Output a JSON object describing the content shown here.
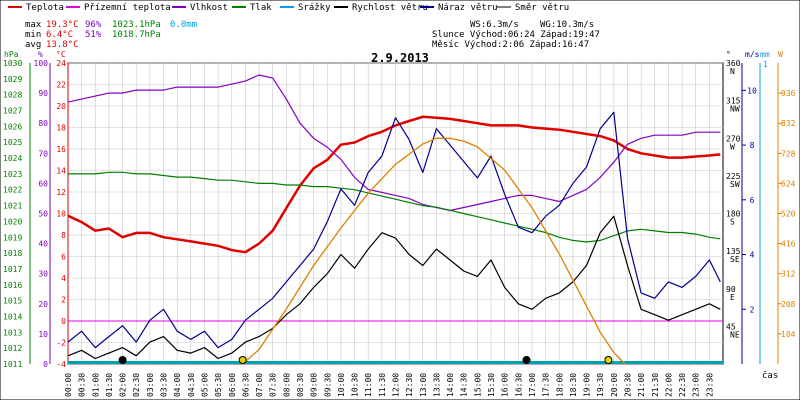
{
  "legend": [
    {
      "label": "Teplota",
      "color": "#e00000"
    },
    {
      "label": "Přízemní teplota",
      "color": "#e000e0"
    },
    {
      "label": "Vlhkost",
      "color": "#8000c0"
    },
    {
      "label": "Tlak",
      "color": "#008000"
    },
    {
      "label": "Srážky",
      "color": "#00a0e0"
    },
    {
      "label": "Rychlost větru",
      "color": "#000000"
    },
    {
      "label": "Náraz větru",
      "color": "#000090"
    },
    {
      "label": "Směr větru",
      "color": "#808080"
    }
  ],
  "stats": {
    "max_label": "max",
    "min_label": "min",
    "avg_label": "avg",
    "max_temp": "19.3°C",
    "max_hum": "96%",
    "max_press": "1023.1hPa",
    "max_rain": "0.0mm",
    "min_temp": "6.4°C",
    "min_hum": "51%",
    "min_press": "1018.7hPa",
    "avg_temp": "13.8°C"
  },
  "wind_info": {
    "ws": "WS:6.3m/s",
    "wg": "WG:10.3m/s",
    "sun_row": "Slunce Východ:06:24  Západ:19:47",
    "moon_row": "Měsíc  Východ:2:06   Západ:16:47"
  },
  "colors": {
    "temp": "#e00000",
    "ground": "#e000e0",
    "hum": "#8000c0",
    "press": "#008000",
    "rain": "#00a0e0",
    "wind": "#000000",
    "gust": "#000090",
    "dir": "#808080",
    "solar": "#e08000",
    "grid": "#c8c8c8"
  },
  "chart_data": {
    "type": "line",
    "title": "2.9.2013",
    "xlabel": "čas",
    "x_ticks": [
      "00:00",
      "00:30",
      "01:00",
      "01:30",
      "02:00",
      "02:30",
      "03:00",
      "03:30",
      "04:00",
      "04:30",
      "05:00",
      "05:30",
      "06:00",
      "06:30",
      "07:00",
      "07:30",
      "08:00",
      "08:30",
      "09:00",
      "09:30",
      "10:00",
      "10:30",
      "11:00",
      "11:30",
      "12:00",
      "12:30",
      "13:00",
      "13:30",
      "14:00",
      "14:30",
      "15:00",
      "15:30",
      "16:00",
      "16:30",
      "17:00",
      "17:30",
      "18:00",
      "18:30",
      "19:00",
      "19:30",
      "20:00",
      "20:30",
      "21:00",
      "21:30",
      "22:00",
      "22:30",
      "23:00",
      "23:30"
    ],
    "xlim": [
      0,
      24
    ],
    "axes": {
      "pressure": {
        "unit": "hPa",
        "range": [
          1011,
          1030
        ],
        "ticks": [
          "1030",
          "1029",
          "1028",
          "1027",
          "1026",
          "1025",
          "1024",
          "1023",
          "1022",
          "1021",
          "1020",
          "1019",
          "1018",
          "1017",
          "1016",
          "1015",
          "1014",
          "1013",
          "1012",
          "1011"
        ]
      },
      "humidity": {
        "unit": "%",
        "range": [
          0,
          100
        ],
        "ticks": [
          "100",
          "90",
          "80",
          "70",
          "60",
          "50",
          "40",
          "30",
          "20",
          "10",
          "0"
        ]
      },
      "temperature": {
        "unit": "°C",
        "range": [
          -4,
          24
        ],
        "ticks": [
          "24",
          "22",
          "20",
          "18",
          "16",
          "14",
          "12",
          "10",
          "8",
          "6",
          "4",
          "2",
          "0",
          "-2",
          "-4"
        ]
      },
      "wind_direction": {
        "unit": "°",
        "range": [
          0,
          360
        ],
        "ticks": [
          "360",
          "315",
          "270",
          "225",
          "180",
          "135",
          "90",
          "45"
        ],
        "compass": [
          "N",
          "NW",
          "W",
          "SW",
          "S",
          "SE",
          "E",
          "NE"
        ]
      },
      "wind_speed": {
        "unit": "m/s",
        "range": [
          0,
          11
        ],
        "ticks": [
          "10",
          "8",
          "6",
          "4",
          "2"
        ]
      },
      "rain": {
        "unit": "mm",
        "ticks": [
          "1"
        ]
      },
      "solar": {
        "unit": "W",
        "range": [
          0,
          1040
        ],
        "ticks": [
          "936",
          "832",
          "728",
          "624",
          "520",
          "416",
          "312",
          "208",
          "104"
        ]
      }
    },
    "series": [
      {
        "key": "temp",
        "name": "Teplota",
        "axis": "temperature",
        "x": [
          0,
          0.5,
          1,
          1.5,
          2,
          2.5,
          3,
          3.5,
          4,
          4.5,
          5,
          5.5,
          6,
          6.5,
          7,
          7.5,
          8,
          8.5,
          9,
          9.5,
          10,
          10.5,
          11,
          11.5,
          12,
          12.5,
          13,
          13.5,
          14,
          14.5,
          15,
          15.5,
          16,
          16.5,
          17,
          17.5,
          18,
          18.5,
          19,
          19.5,
          20,
          20.5,
          21,
          21.5,
          22,
          22.5,
          23,
          23.5,
          23.9
        ],
        "y": [
          9.8,
          9.2,
          8.4,
          8.6,
          7.8,
          8.2,
          8.2,
          7.8,
          7.6,
          7.4,
          7.2,
          7.0,
          6.6,
          6.4,
          7.2,
          8.4,
          10.5,
          12.6,
          14.2,
          15.0,
          16.4,
          16.6,
          17.2,
          17.6,
          18.2,
          18.6,
          19.0,
          18.9,
          18.8,
          18.6,
          18.4,
          18.2,
          18.2,
          18.2,
          18.0,
          17.9,
          17.8,
          17.6,
          17.4,
          17.2,
          16.8,
          16.0,
          15.6,
          15.4,
          15.2,
          15.2,
          15.3,
          15.4,
          15.5
        ]
      },
      {
        "key": "hum",
        "name": "Vlhkost",
        "axis": "humidity",
        "x": [
          0,
          0.5,
          1,
          1.5,
          2,
          2.5,
          3,
          3.5,
          4,
          4.5,
          5,
          5.5,
          6,
          6.5,
          7,
          7.5,
          8,
          8.5,
          9,
          9.5,
          10,
          10.5,
          11,
          11.5,
          12,
          12.5,
          13,
          13.5,
          14,
          14.5,
          15,
          15.5,
          16,
          16.5,
          17,
          17.5,
          18,
          18.5,
          19,
          19.5,
          20,
          20.5,
          21,
          21.5,
          22,
          22.5,
          23,
          23.5,
          23.9
        ],
        "y": [
          87,
          88,
          89,
          90,
          90,
          91,
          91,
          91,
          92,
          92,
          92,
          92,
          93,
          94,
          96,
          95,
          88,
          80,
          75,
          72,
          68,
          62,
          58,
          57,
          56,
          55,
          53,
          52,
          51,
          52,
          53,
          54,
          55,
          56,
          56,
          55,
          54,
          56,
          58,
          62,
          67,
          73,
          75,
          76,
          76,
          76,
          77,
          77,
          77
        ]
      },
      {
        "key": "press",
        "name": "Tlak",
        "axis": "pressure",
        "x": [
          0,
          0.5,
          1,
          1.5,
          2,
          2.5,
          3,
          3.5,
          4,
          4.5,
          5,
          5.5,
          6,
          6.5,
          7,
          7.5,
          8,
          8.5,
          9,
          9.5,
          10,
          10.5,
          11,
          11.5,
          12,
          12.5,
          13,
          13.5,
          14,
          14.5,
          15,
          15.5,
          16,
          16.5,
          17,
          17.5,
          18,
          18.5,
          19,
          19.5,
          20,
          20.5,
          21,
          21.5,
          22,
          22.5,
          23,
          23.5,
          23.9
        ],
        "y": [
          1023.0,
          1023.0,
          1023.0,
          1023.1,
          1023.1,
          1023.0,
          1023.0,
          1022.9,
          1022.8,
          1022.8,
          1022.7,
          1022.6,
          1022.6,
          1022.5,
          1022.4,
          1022.4,
          1022.3,
          1022.3,
          1022.2,
          1022.2,
          1022.1,
          1022.0,
          1021.8,
          1021.6,
          1021.4,
          1021.2,
          1021.0,
          1020.9,
          1020.7,
          1020.5,
          1020.3,
          1020.1,
          1019.9,
          1019.7,
          1019.5,
          1019.3,
          1019.0,
          1018.8,
          1018.7,
          1018.8,
          1019.1,
          1019.4,
          1019.5,
          1019.4,
          1019.3,
          1019.3,
          1019.2,
          1019.0,
          1018.9
        ]
      },
      {
        "key": "ground",
        "name": "Přízemní teplota",
        "axis": "temperature",
        "x": [
          0,
          24
        ],
        "y": [
          0,
          0
        ]
      },
      {
        "key": "wind",
        "name": "Rychlost větru",
        "axis": "wind_speed",
        "x": [
          0,
          0.5,
          1,
          1.5,
          2,
          2.5,
          3,
          3.5,
          4,
          4.5,
          5,
          5.5,
          6,
          6.5,
          7,
          7.5,
          8,
          8.5,
          9,
          9.5,
          10,
          10.5,
          11,
          11.5,
          12,
          12.5,
          13,
          13.5,
          14,
          14.5,
          15,
          15.5,
          16,
          16.5,
          17,
          17.5,
          18,
          18.5,
          19,
          19.5,
          20,
          20.5,
          21,
          21.5,
          22,
          22.5,
          23,
          23.5,
          23.9
        ],
        "y": [
          0.3,
          0.5,
          0.2,
          0.4,
          0.6,
          0.3,
          0.8,
          1.0,
          0.5,
          0.4,
          0.6,
          0.2,
          0.4,
          0.8,
          1.0,
          1.3,
          1.8,
          2.2,
          2.8,
          3.3,
          4.0,
          3.5,
          4.2,
          4.8,
          4.6,
          4.0,
          3.6,
          4.2,
          3.8,
          3.4,
          3.2,
          3.8,
          2.8,
          2.2,
          2.0,
          2.4,
          2.6,
          3.0,
          3.6,
          4.8,
          5.4,
          3.6,
          2.0,
          1.8,
          1.6,
          1.8,
          2.0,
          2.2,
          2.0
        ]
      },
      {
        "key": "gust",
        "name": "Náraz větru",
        "axis": "wind_speed",
        "x": [
          0,
          0.5,
          1,
          1.5,
          2,
          2.5,
          3,
          3.5,
          4,
          4.5,
          5,
          5.5,
          6,
          6.5,
          7,
          7.5,
          8,
          8.5,
          9,
          9.5,
          10,
          10.5,
          11,
          11.5,
          12,
          12.5,
          13,
          13.5,
          14,
          14.5,
          15,
          15.5,
          16,
          16.5,
          17,
          17.5,
          18,
          18.5,
          19,
          19.5,
          20,
          20.5,
          21,
          21.5,
          22,
          22.5,
          23,
          23.5,
          23.9
        ],
        "y": [
          0.8,
          1.2,
          0.6,
          1.0,
          1.4,
          0.8,
          1.6,
          2.0,
          1.2,
          0.9,
          1.2,
          0.6,
          0.9,
          1.6,
          2.0,
          2.4,
          3.0,
          3.6,
          4.2,
          5.2,
          6.4,
          5.8,
          7.0,
          7.6,
          9.0,
          8.2,
          7.0,
          8.6,
          8.0,
          7.4,
          6.8,
          7.6,
          6.2,
          5.0,
          4.8,
          5.4,
          5.8,
          6.6,
          7.2,
          8.6,
          9.2,
          4.6,
          2.6,
          2.4,
          3.0,
          2.8,
          3.2,
          3.8,
          3.0
        ]
      },
      {
        "key": "solar",
        "name": "",
        "axis": "solar",
        "x": [
          6.4,
          7,
          8,
          9,
          10,
          11,
          12,
          13,
          13.5,
          14,
          14.5,
          15,
          16,
          17,
          18,
          19,
          19.5,
          20,
          20.4
        ],
        "y": [
          0,
          50,
          190,
          340,
          470,
          590,
          690,
          760,
          780,
          780,
          770,
          750,
          670,
          540,
          380,
          200,
          110,
          40,
          0
        ]
      }
    ],
    "markers": [
      {
        "x": 2.0,
        "color": "#000000",
        "kind": "moon-rise"
      },
      {
        "x": 6.4,
        "color": "#f0d000",
        "kind": "sun-rise"
      },
      {
        "x": 16.8,
        "color": "#000000",
        "kind": "moon-set"
      },
      {
        "x": 19.8,
        "color": "#f0d000",
        "kind": "sun-set"
      }
    ]
  }
}
